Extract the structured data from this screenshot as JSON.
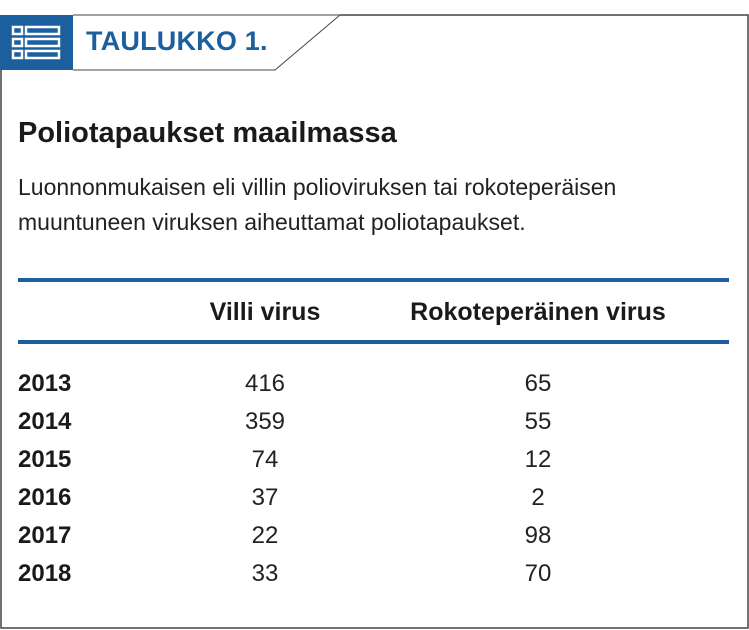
{
  "header": {
    "label": "TAULUKKO 1.",
    "icon": "table-list-icon",
    "accent_color": "#1c5f9e"
  },
  "table": {
    "title": "Poliotapaukset maailmassa",
    "subtitle": "Luonnonmukaisen eli villin polioviruksen tai rokoteperäisen muuntuneen viruksen aiheuttamat poliotapaukset.",
    "columns": [
      "",
      "Villi virus",
      "Rokoteperäinen virus"
    ],
    "rows": [
      {
        "year": "2013",
        "villi": "416",
        "roko": "65"
      },
      {
        "year": "2014",
        "villi": "359",
        "roko": "55"
      },
      {
        "year": "2015",
        "villi": "74",
        "roko": "12"
      },
      {
        "year": "2016",
        "villi": "37",
        "roko": "2"
      },
      {
        "year": "2017",
        "villi": "22",
        "roko": "98"
      },
      {
        "year": "2018",
        "villi": "33",
        "roko": "70"
      }
    ]
  }
}
